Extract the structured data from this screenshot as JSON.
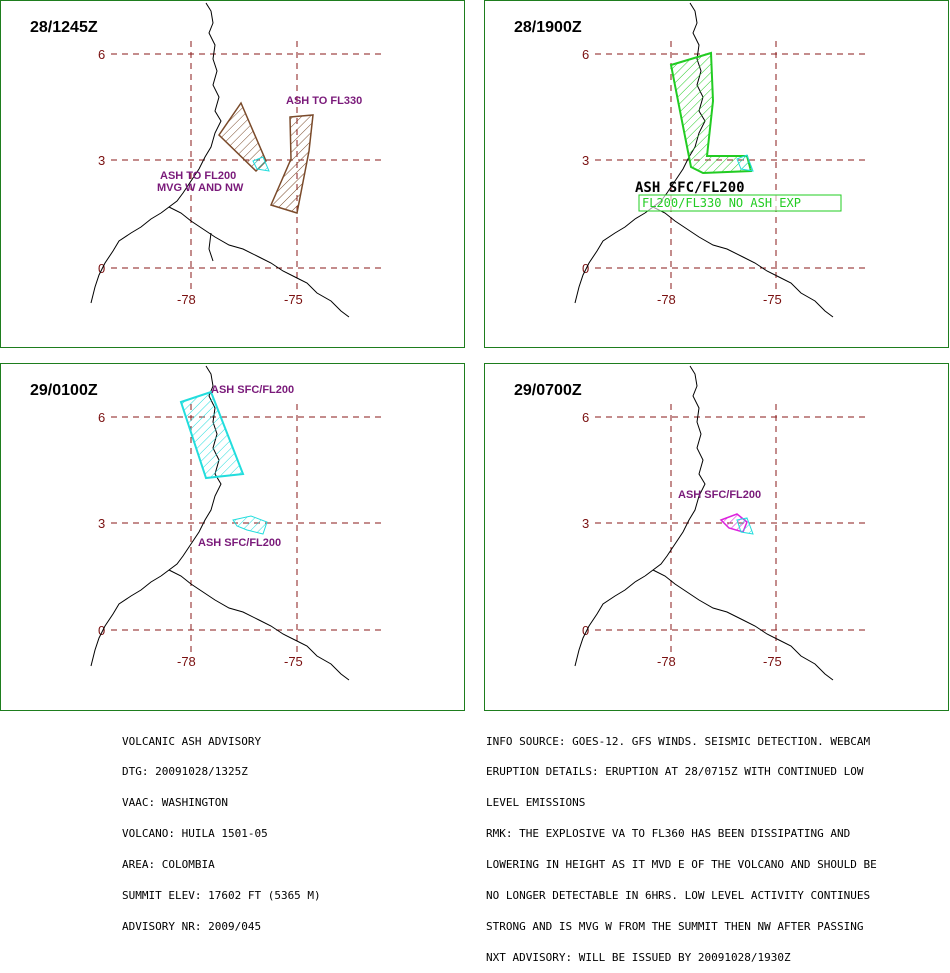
{
  "panels": [
    {
      "time": "28/1245Z",
      "labels": [
        "ASH TO FL330",
        "ASH TO FL200",
        "MVG W AND NW"
      ],
      "colors": {
        "ash": "#7a4a2a"
      }
    },
    {
      "time": "28/1900Z",
      "labels": [
        "ASH SFC/FL200",
        "FL200/FL330 NO ASH EXP"
      ],
      "colors": {
        "ash": "#22cc22"
      }
    },
    {
      "time": "29/0100Z",
      "labels": [
        "ASH SFC/FL200",
        "ASH SFC/FL200"
      ],
      "colors": {
        "ash": "#22dddd"
      }
    },
    {
      "time": "29/0700Z",
      "labels": [
        "ASH SFC/FL200"
      ],
      "colors": {
        "ash": "#dd22dd",
        "ash2": "#22dddd"
      }
    }
  ],
  "axes": {
    "lat_ticks": [
      "6",
      "3",
      "0"
    ],
    "lon_ticks": [
      "-78",
      "-75"
    ]
  },
  "footer": {
    "left": [
      "VOLCANIC ASH ADVISORY",
      "DTG: 20091028/1325Z",
      "VAAC: WASHINGTON",
      "VOLCANO: HUILA 1501-05",
      "AREA: COLOMBIA",
      "SUMMIT ELEV: 17602 FT (5365 M)",
      "ADVISORY NR: 2009/045"
    ],
    "right": [
      "INFO SOURCE: GOES-12. GFS WINDS. SEISMIC DETECTION. WEBCAM",
      "ERUPTION DETAILS: ERUPTION AT 28/0715Z WITH CONTINUED LOW",
      "LEVEL EMISSIONS",
      "RMK: THE EXPLOSIVE VA TO FL360 HAS BEEN DISSIPATING AND",
      "LOWERING IN HEIGHT AS IT MVD E OF THE VOLCANO AND SHOULD BE",
      "NO LONGER DETECTABLE IN 6HRS. LOW LEVEL ACTIVITY CONTINUES",
      "STRONG AND IS MVG W FROM THE SUMMIT THEN NW AFTER PASSING",
      "NXT ADVISORY: WILL BE ISSUED BY 20091028/1930Z"
    ]
  }
}
